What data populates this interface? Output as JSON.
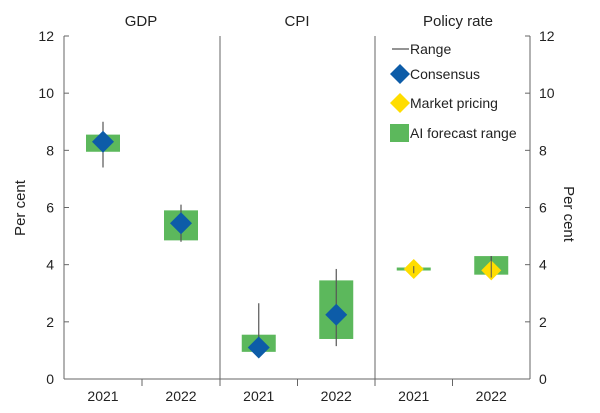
{
  "chart_data": {
    "type": "range-dot",
    "ylabel_left": "Per cent",
    "ylabel_right": "Per cent",
    "ylim": [
      0,
      12
    ],
    "yticks": [
      "0",
      "2",
      "4",
      "6",
      "8",
      "10",
      "12"
    ],
    "panels": [
      {
        "title": "GDP",
        "points": [
          {
            "year": "2021",
            "range": [
              7.4,
              9.0
            ],
            "ai_range": [
              7.95,
              8.55
            ],
            "consensus": 8.3,
            "market_pricing": null
          },
          {
            "year": "2022",
            "range": [
              4.8,
              6.1
            ],
            "ai_range": [
              4.85,
              5.9
            ],
            "consensus": 5.45,
            "market_pricing": null
          }
        ]
      },
      {
        "title": "CPI",
        "points": [
          {
            "year": "2021",
            "range": [
              0.95,
              2.65
            ],
            "ai_range": [
              0.95,
              1.55
            ],
            "consensus": 1.1,
            "market_pricing": null
          },
          {
            "year": "2022",
            "range": [
              1.15,
              3.85
            ],
            "ai_range": [
              1.4,
              3.45
            ],
            "consensus": 2.25,
            "market_pricing": null
          }
        ]
      },
      {
        "title": "Policy rate",
        "points": [
          {
            "year": "2021",
            "range": [
              3.7,
              3.95
            ],
            "ai_range": [
              3.8,
              3.9
            ],
            "consensus": null,
            "market_pricing": 3.85
          },
          {
            "year": "2022",
            "range": [
              3.55,
              4.3
            ],
            "ai_range": [
              3.65,
              4.3
            ],
            "consensus": null,
            "market_pricing": 3.8
          }
        ]
      }
    ],
    "legend": [
      {
        "key": "range",
        "label": "Range"
      },
      {
        "key": "consensus",
        "label": "Consensus"
      },
      {
        "key": "market_pricing",
        "label": "Market pricing"
      },
      {
        "key": "ai_range",
        "label": "AI forecast range"
      }
    ],
    "colors": {
      "range": "#555555",
      "consensus": "#0d5ca8",
      "market_pricing": "#ffdd00",
      "ai_range": "#5cb85c",
      "axis": "#666666"
    }
  }
}
